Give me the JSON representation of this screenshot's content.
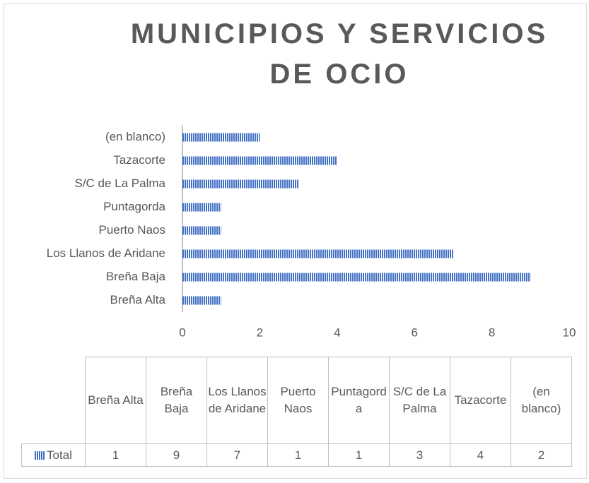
{
  "chart_data": {
    "type": "bar",
    "orientation": "horizontal",
    "title": "MUNICIPIOS Y SERVICIOS DE OCIO",
    "categories": [
      "Breña Alta",
      "Breña Baja",
      "Los Llanos de Aridane",
      "Puerto Naos",
      "Puntagorda",
      "S/C de La Palma",
      "Tazacorte",
      "(en blanco)"
    ],
    "series": [
      {
        "name": "Total",
        "color": "#4472c4",
        "values": [
          1,
          9,
          7,
          1,
          1,
          3,
          4,
          2
        ]
      }
    ],
    "xlim": [
      0,
      10
    ],
    "xticks": [
      0,
      2,
      4,
      6,
      8,
      10
    ],
    "data_table": true
  }
}
